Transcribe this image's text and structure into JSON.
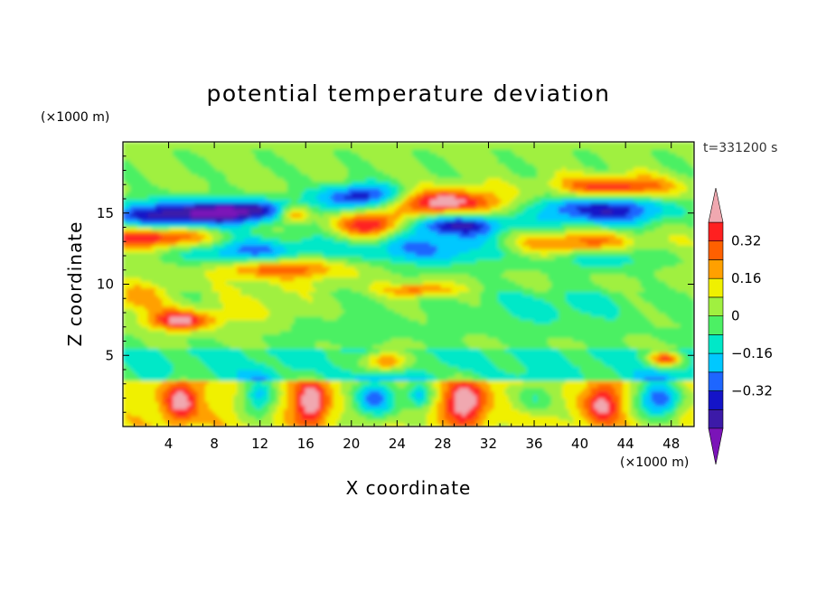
{
  "chart_data": {
    "type": "heatmap",
    "title": "potential temperature deviation",
    "xlabel": "X coordinate",
    "ylabel": "Z coordinate",
    "x_unit": "(×1000 m)",
    "y_unit": "(×1000 m)",
    "time_label": "t=331200 s",
    "xlim": [
      0,
      50
    ],
    "ylim": [
      0,
      20
    ],
    "x_ticks": [
      4,
      8,
      12,
      16,
      20,
      24,
      28,
      32,
      36,
      40,
      44,
      48
    ],
    "y_ticks": [
      5,
      10,
      15
    ],
    "colorbar": {
      "levels": [
        -0.48,
        -0.4,
        -0.32,
        -0.24,
        -0.16,
        -0.08,
        0,
        0.08,
        0.16,
        0.24,
        0.32,
        0.4
      ],
      "tick_labels": [
        {
          "value": 0.32,
          "label": "0.32"
        },
        {
          "value": 0.16,
          "label": "0.16"
        },
        {
          "value": 0,
          "label": "0"
        },
        {
          "value": -0.16,
          "label": "−0.16"
        },
        {
          "value": -0.32,
          "label": "−0.32"
        }
      ],
      "colors": [
        "#7b14b8",
        "#3c1aa8",
        "#1414c8",
        "#1e66ff",
        "#00c8ff",
        "#00e8c8",
        "#4cf064",
        "#a0f040",
        "#f0f000",
        "#ffa000",
        "#ff6000",
        "#ff2020",
        "#f0a8b0"
      ],
      "extend": "both"
    },
    "features": [
      {
        "x": 4,
        "z": 14.8,
        "rx": 6,
        "rz": 1.1,
        "v": -0.45
      },
      {
        "x": 11,
        "z": 15.2,
        "rx": 5,
        "rz": 0.8,
        "v": -0.42
      },
      {
        "x": 21,
        "z": 16.2,
        "rx": 4,
        "rz": 0.9,
        "v": -0.44
      },
      {
        "x": 42,
        "z": 15.3,
        "rx": 6,
        "rz": 1.2,
        "v": -0.43
      },
      {
        "x": 29,
        "z": 14.2,
        "rx": 5,
        "rz": 0.8,
        "v": -0.4
      },
      {
        "x": 11,
        "z": 12.0,
        "rx": 6,
        "rz": 1.3,
        "v": -0.36
      },
      {
        "x": 27,
        "z": 12.5,
        "rx": 8,
        "rz": 1.2,
        "v": -0.28
      },
      {
        "x": 42,
        "z": 12.2,
        "rx": 5,
        "rz": 1.0,
        "v": -0.3
      },
      {
        "x": 3,
        "z": 13.4,
        "rx": 5,
        "rz": 0.8,
        "v": 0.45
      },
      {
        "x": 28,
        "z": 15.8,
        "rx": 5,
        "rz": 0.9,
        "v": 0.45
      },
      {
        "x": 43,
        "z": 16.8,
        "rx": 5,
        "rz": 0.8,
        "v": 0.42
      },
      {
        "x": 22,
        "z": 14.2,
        "rx": 3,
        "rz": 0.9,
        "v": 0.44
      },
      {
        "x": 15,
        "z": 15.0,
        "rx": 1.5,
        "rz": 0.6,
        "v": 0.4
      },
      {
        "x": 13,
        "z": 11.2,
        "rx": 6,
        "rz": 0.8,
        "v": 0.45
      },
      {
        "x": 40,
        "z": 12.8,
        "rx": 6,
        "rz": 0.9,
        "v": 0.42
      },
      {
        "x": 26,
        "z": 9.6,
        "rx": 3,
        "rz": 0.5,
        "v": 0.26
      },
      {
        "x": 5,
        "z": 7.5,
        "rx": 3,
        "rz": 0.7,
        "v": 0.42
      },
      {
        "x": 1,
        "z": 9.0,
        "rx": 3,
        "rz": 1.0,
        "v": 0.2
      },
      {
        "x": 12,
        "z": 8.5,
        "rx": 5,
        "rz": 1.5,
        "v": 0.1
      },
      {
        "x": 38,
        "z": 8.5,
        "rx": 7,
        "rz": 1.5,
        "v": -0.12
      },
      {
        "x": 20,
        "z": 7.0,
        "rx": 6,
        "rz": 1.5,
        "v": -0.05
      },
      {
        "x": 23,
        "z": 4.6,
        "rx": 2,
        "rz": 0.8,
        "v": 0.4
      },
      {
        "x": 47.5,
        "z": 4.8,
        "rx": 1.5,
        "rz": 0.5,
        "v": 0.4
      },
      {
        "x": 5,
        "z": 1.8,
        "rx": 1.5,
        "rz": 1.5,
        "v": 0.35
      },
      {
        "x": 16.5,
        "z": 1.8,
        "rx": 1.5,
        "rz": 1.6,
        "v": 0.38
      },
      {
        "x": 30,
        "z": 1.8,
        "rx": 1.8,
        "rz": 1.6,
        "v": 0.38
      },
      {
        "x": 42,
        "z": 1.6,
        "rx": 1.6,
        "rz": 1.4,
        "v": 0.3
      },
      {
        "x": 22,
        "z": 2.0,
        "rx": 2,
        "rz": 1.6,
        "v": -0.4
      },
      {
        "x": 47,
        "z": 2.0,
        "rx": 2,
        "rz": 1.4,
        "v": -0.42
      },
      {
        "x": 12,
        "z": 2.2,
        "rx": 1.5,
        "rz": 1.4,
        "v": -0.3
      },
      {
        "x": 36,
        "z": 2.0,
        "rx": 2,
        "rz": 1.2,
        "v": -0.2
      },
      {
        "x": 26,
        "z": 2.2,
        "rx": 1.2,
        "rz": 1.0,
        "v": -0.3
      }
    ]
  }
}
